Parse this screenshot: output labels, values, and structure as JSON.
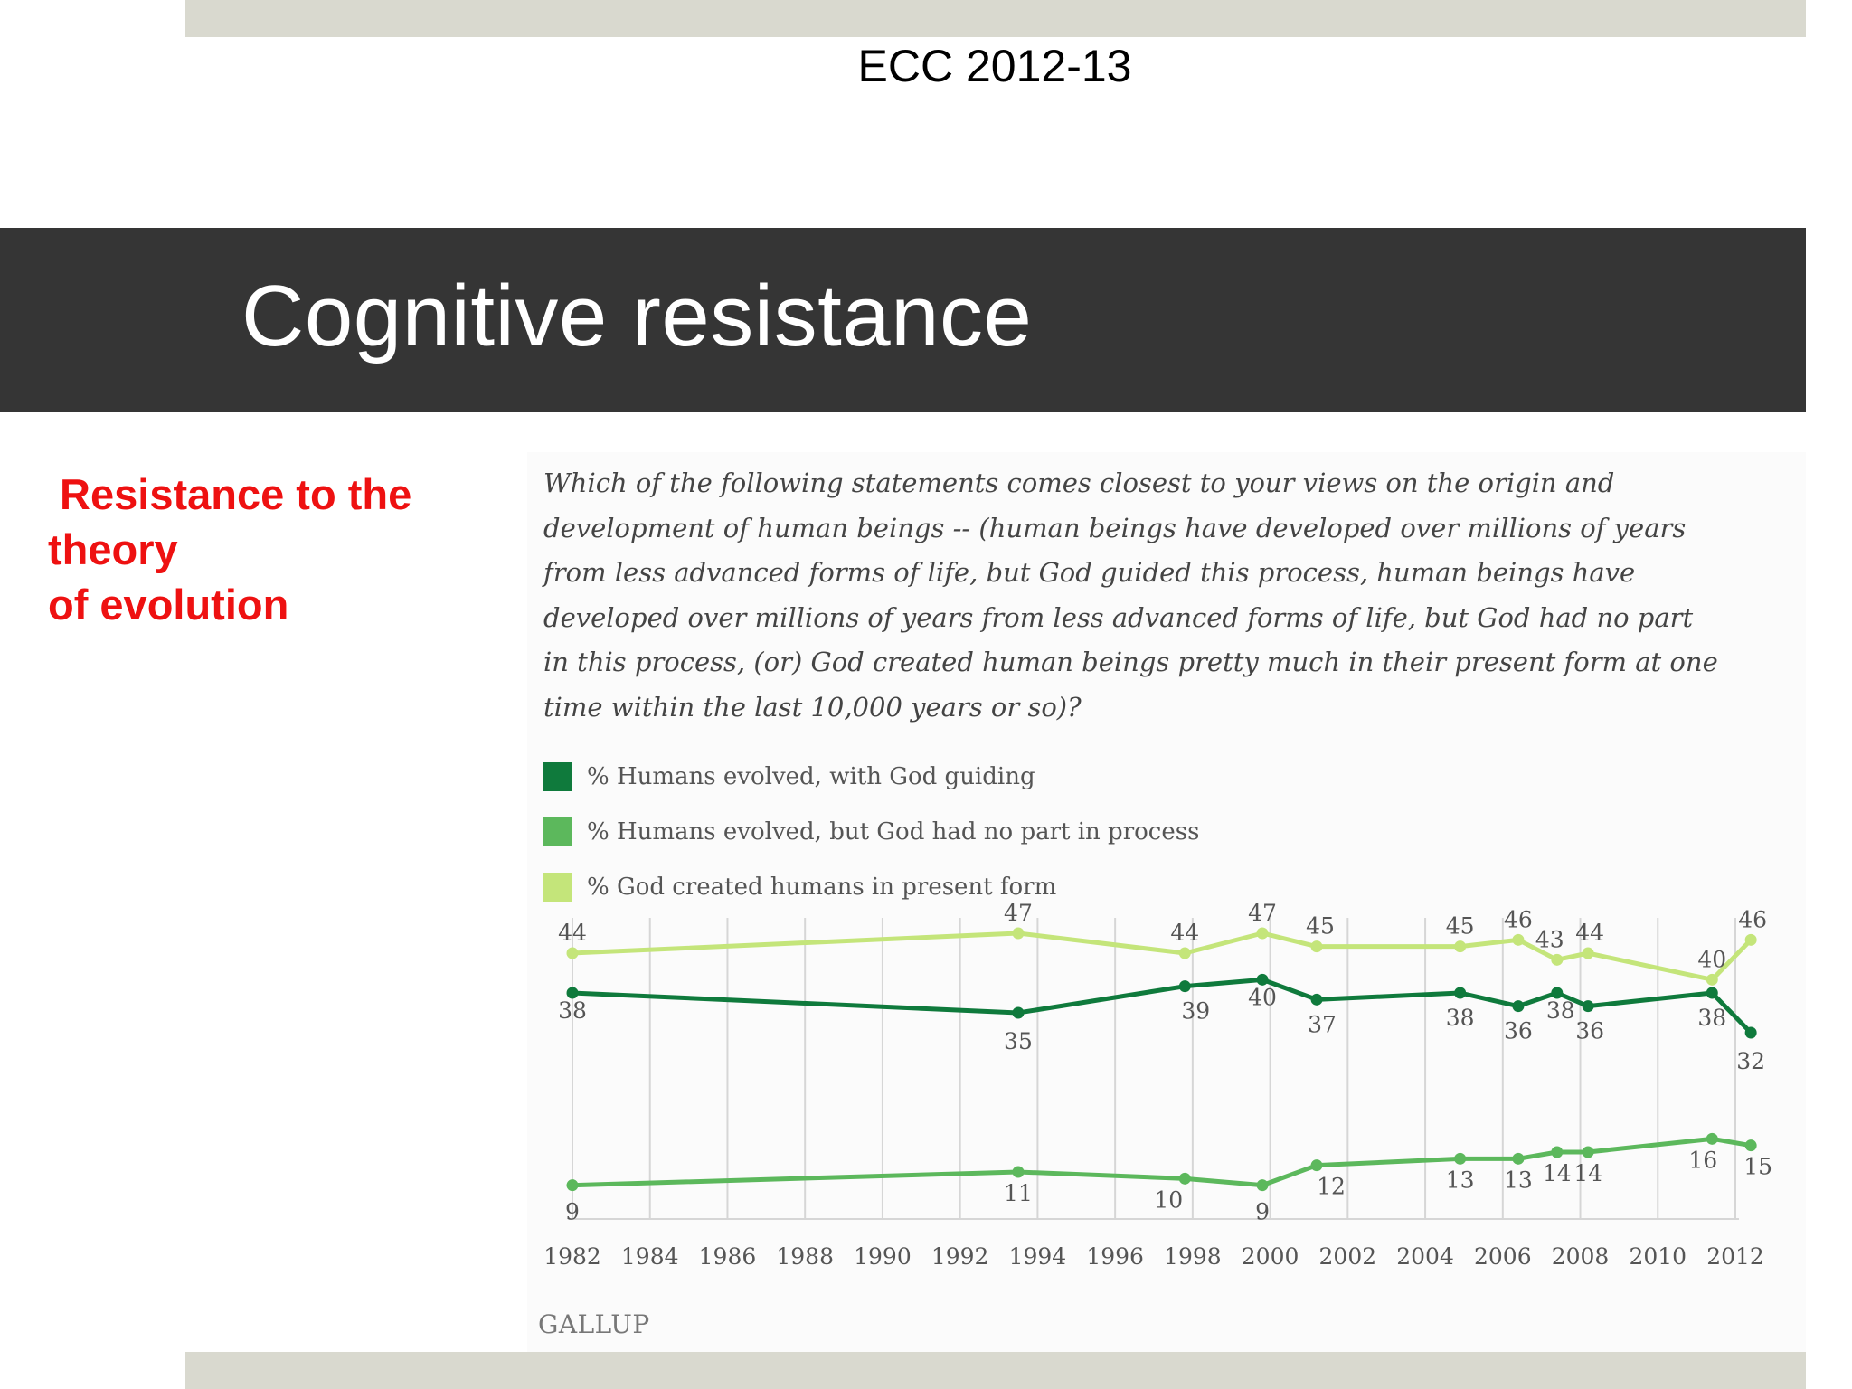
{
  "header": {
    "text": "ECC 2012-13"
  },
  "slide": {
    "title": "Cognitive resistance"
  },
  "sidebar": {
    "lines": [
      " Resistance to the",
      "theory",
      "of evolution"
    ]
  },
  "figure": {
    "question_lines": [
      "Which of the following statements comes closest to your views on the origin and",
      "development of human beings -- (human beings have developed over millions of years",
      "from less advanced forms of life, but God guided this process, human beings have",
      "developed over millions of years from less advanced forms of life, but God had no part",
      "in this process, (or) God created human beings pretty much in their present form at one",
      "time within the last 10,000 years or so)?"
    ],
    "source": "GALLUP"
  },
  "chart_data": {
    "type": "line",
    "title": "",
    "xlabel": "",
    "ylabel": "",
    "x": [
      1982,
      1993.5,
      1997.8,
      1999.8,
      2001.2,
      2004.9,
      2006.4,
      2007.4,
      2008.2,
      2011.4,
      2012.4
    ],
    "x_ticks": [
      "1982",
      "1984",
      "1986",
      "1988",
      "1990",
      "1992",
      "1994",
      "1996",
      "1998",
      "2000",
      "2002",
      "2004",
      "2006",
      "2008",
      "2010",
      "2012"
    ],
    "xlim": [
      1982,
      2012
    ],
    "ylim": [
      5,
      50
    ],
    "grid": "vertical",
    "series": [
      {
        "name": "% Humans evolved, with God guiding",
        "color": "#0f7a3c",
        "values": [
          38,
          35,
          39,
          40,
          37,
          38,
          36,
          38,
          36,
          38,
          32
        ]
      },
      {
        "name": "% Humans evolved, but God had no part in process",
        "color": "#5cb85c",
        "values": [
          9,
          11,
          10,
          9,
          12,
          13,
          13,
          14,
          14,
          16,
          15
        ]
      },
      {
        "name": "% God created humans in present form",
        "color": "#c4e57a",
        "values": [
          44,
          47,
          44,
          47,
          45,
          45,
          46,
          43,
          44,
          40,
          46
        ]
      }
    ]
  }
}
